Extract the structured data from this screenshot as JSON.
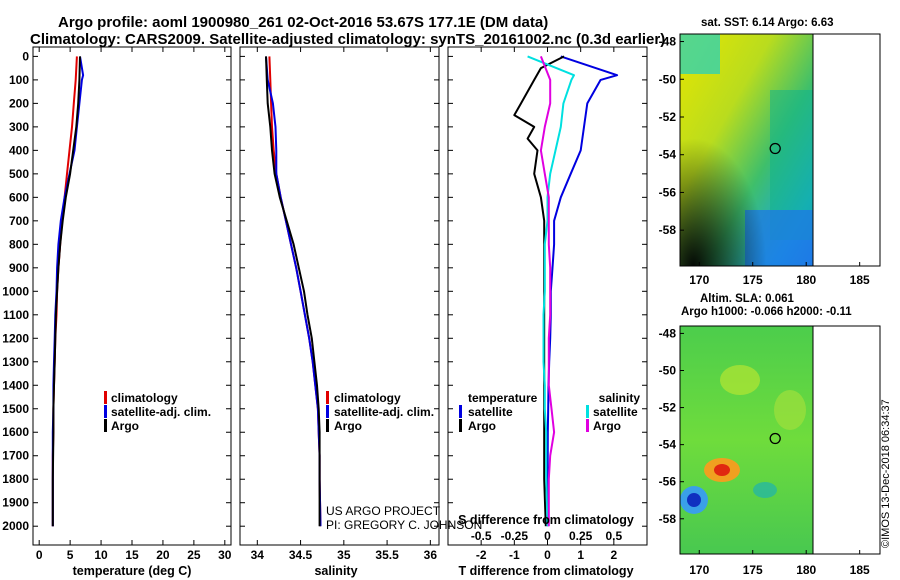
{
  "header": {
    "line1": "Argo profile: aoml 1900980_261 02-Oct-2016 53.67S 177.1E (DM data)",
    "line2": "Climatology: CARS2009. Satellite-adjusted climatology: synTS_20161002.nc (0.3d earlier)"
  },
  "colors": {
    "climatology": "#e00000",
    "satellite": "#0000e0",
    "argo": "#000000",
    "s_satellite": "#00e0e0",
    "s_argo": "#e000e0"
  },
  "depth_ticks": [
    "0",
    "100",
    "200",
    "300",
    "400",
    "500",
    "600",
    "700",
    "800",
    "900",
    "1000",
    "1100",
    "1200",
    "1300",
    "1400",
    "1500",
    "1600",
    "1700",
    "1800",
    "1900",
    "2000"
  ],
  "legend_labels": {
    "climatology": "climatology",
    "satellite_adj": "satellite-adj. clim.",
    "argo": "Argo"
  },
  "diff_legend": {
    "temperature": "temperature",
    "salinity": "salinity",
    "satellite": "satellite",
    "argo": "Argo"
  },
  "credits": {
    "project": "US ARGO PROJECT",
    "pi": "PI: GREGORY C. JOHNSON"
  },
  "maps": {
    "sst_title": "sat. SST: 6.14 Argo: 6.63",
    "sla_title1": "Altim. SLA: 0.061",
    "sla_title2": "Argo h1000: -0.066 h2000: -0.11",
    "lat_ticks": [
      "-48",
      "-50",
      "-52",
      "-54",
      "-56",
      "-58"
    ],
    "lon_ticks": [
      "170",
      "175",
      "180",
      "185"
    ],
    "argo_lon": 177.1,
    "argo_lat": -53.67
  },
  "copyright": "©IMOS 13-Dec-2018 06:34:37",
  "chart_data": [
    {
      "type": "line",
      "xlabel": "temperature (deg C)",
      "ylabel": "",
      "xlim": [
        -1,
        31
      ],
      "ylim": [
        2080,
        -40
      ],
      "xticks": [
        "0",
        "5",
        "10",
        "15",
        "20",
        "25",
        "30"
      ],
      "series": [
        {
          "name": "climatology",
          "x": [
            6.1,
            5.9,
            5.6,
            5.3,
            4.9,
            4.5,
            4.1,
            3.7,
            3.4,
            3.1,
            2.9,
            2.8,
            2.6,
            2.5,
            2.4,
            2.3,
            2.3,
            2.2,
            2.2,
            2.2
          ],
          "y": [
            0,
            100,
            200,
            300,
            400,
            500,
            600,
            700,
            800,
            900,
            1000,
            1100,
            1200,
            1300,
            1400,
            1500,
            1600,
            1700,
            1800,
            2000
          ]
        },
        {
          "name": "satellite-adj. clim.",
          "x": [
            6.6,
            7.1,
            6.9,
            6.5,
            6.1,
            5.7,
            4.9,
            4.1,
            3.5,
            3.1,
            2.9,
            2.8,
            2.6,
            2.5,
            2.4,
            2.3,
            2.3,
            2.2,
            2.2,
            2.2
          ],
          "y": [
            0,
            80,
            100,
            200,
            300,
            400,
            500,
            600,
            700,
            800,
            900,
            1000,
            1100,
            1200,
            1300,
            1400,
            1500,
            1600,
            1800,
            2000
          ]
        },
        {
          "name": "Argo",
          "x": [
            6.6,
            6.5,
            6.3,
            6.0,
            5.5,
            5.0,
            4.3,
            3.8,
            3.4,
            3.1,
            2.9,
            2.7,
            2.6,
            2.5,
            2.4,
            2.3,
            2.3,
            2.2,
            2.2
          ],
          "y": [
            0,
            100,
            200,
            300,
            400,
            500,
            600,
            700,
            800,
            900,
            1000,
            1100,
            1200,
            1300,
            1400,
            1500,
            1600,
            1800,
            2000
          ]
        }
      ]
    },
    {
      "type": "line",
      "xlabel": "salinity",
      "ylabel": "",
      "xlim": [
        33.8,
        36.1
      ],
      "ylim": [
        2080,
        -40
      ],
      "xticks": [
        "34",
        "34.5",
        "35",
        "35.5",
        "36"
      ],
      "series": [
        {
          "name": "climatology",
          "x": [
            34.14,
            34.15,
            34.16,
            34.17,
            34.19,
            34.22,
            34.27,
            34.33,
            34.39,
            34.45,
            34.5,
            34.55,
            34.6,
            34.64,
            34.67,
            34.7,
            34.71,
            34.72,
            34.72,
            34.73
          ],
          "y": [
            0,
            100,
            200,
            300,
            400,
            500,
            600,
            700,
            800,
            900,
            1000,
            1100,
            1200,
            1300,
            1400,
            1500,
            1600,
            1700,
            1800,
            2000
          ]
        },
        {
          "name": "satellite-adj. clim.",
          "x": [
            34.1,
            34.12,
            34.18,
            34.21,
            34.22,
            34.22,
            34.27,
            34.33,
            34.39,
            34.45,
            34.5,
            34.55,
            34.6,
            34.64,
            34.67,
            34.7,
            34.71,
            34.72,
            34.72,
            34.73
          ],
          "y": [
            0,
            100,
            200,
            300,
            400,
            500,
            600,
            700,
            800,
            900,
            1000,
            1100,
            1200,
            1300,
            1400,
            1500,
            1600,
            1700,
            1800,
            2000
          ]
        },
        {
          "name": "Argo",
          "x": [
            34.1,
            34.11,
            34.12,
            34.15,
            34.17,
            34.2,
            34.26,
            34.34,
            34.42,
            34.48,
            34.54,
            34.58,
            34.63,
            34.66,
            34.69,
            34.71,
            34.72,
            34.72,
            34.72,
            34.72
          ],
          "y": [
            0,
            100,
            200,
            300,
            400,
            500,
            600,
            700,
            800,
            900,
            1000,
            1100,
            1200,
            1300,
            1400,
            1500,
            1600,
            1700,
            1800,
            2000
          ]
        }
      ]
    },
    {
      "type": "line",
      "xlabel": "T difference from climatology",
      "xlabel2": "S difference from climatology",
      "ylabel": "",
      "xlim": [
        -3,
        3
      ],
      "ylim": [
        2080,
        -40
      ],
      "xticks": [
        "-2",
        "-1",
        "0",
        "1",
        "2"
      ],
      "xticks2": [
        "-0.5",
        "-0.25",
        "0",
        "0.25",
        "0.5"
      ],
      "series": [
        {
          "name": "T satellite",
          "x": [
            0.4,
            2.1,
            1.6,
            1.2,
            1.1,
            1.0,
            0.7,
            0.4,
            0.2,
            0.2,
            0.15,
            0.1,
            0.1,
            0.08,
            0.05,
            0.03,
            0.02,
            0.01,
            0.0
          ],
          "y": [
            0,
            80,
            100,
            200,
            300,
            400,
            500,
            600,
            700,
            800,
            900,
            1000,
            1100,
            1200,
            1300,
            1400,
            1500,
            1600,
            2000
          ]
        },
        {
          "name": "T Argo",
          "x": [
            0.5,
            -0.2,
            -0.4,
            -0.8,
            -1.0,
            -0.4,
            -0.6,
            -0.3,
            -0.4,
            -0.2,
            -0.1,
            -0.1,
            -0.1,
            -0.1,
            -0.1,
            -0.1,
            -0.1,
            -0.1,
            -0.1,
            -0.05
          ],
          "y": [
            0,
            50,
            100,
            200,
            250,
            300,
            350,
            400,
            500,
            600,
            700,
            800,
            900,
            1000,
            1200,
            1400,
            1600,
            1700,
            1800,
            2000
          ]
        },
        {
          "name": "S satellite",
          "x": [
            -0.15,
            0.2,
            0.18,
            0.12,
            0.1,
            0.06,
            0.02,
            0.0,
            0.0,
            -0.02,
            -0.02,
            -0.02,
            -0.03,
            -0.03,
            -0.03,
            -0.02,
            -0.02,
            -0.01,
            -0.01,
            0.0
          ],
          "y": [
            0,
            80,
            100,
            200,
            300,
            400,
            500,
            600,
            700,
            800,
            900,
            1000,
            1100,
            1200,
            1300,
            1400,
            1500,
            1600,
            1800,
            2000
          ]
        },
        {
          "name": "S Argo",
          "x": [
            -0.05,
            0.02,
            0.02,
            -0.02,
            -0.05,
            -0.02,
            0.01,
            0.01,
            0.01,
            0.02,
            0.02,
            0.02,
            0.01,
            0.01,
            0.01,
            0.03,
            0.05,
            0.02,
            0.01,
            0.01
          ],
          "y": [
            0,
            100,
            200,
            300,
            400,
            500,
            600,
            700,
            800,
            900,
            1000,
            1100,
            1200,
            1300,
            1400,
            1500,
            1600,
            1700,
            1800,
            2000
          ]
        }
      ]
    }
  ]
}
